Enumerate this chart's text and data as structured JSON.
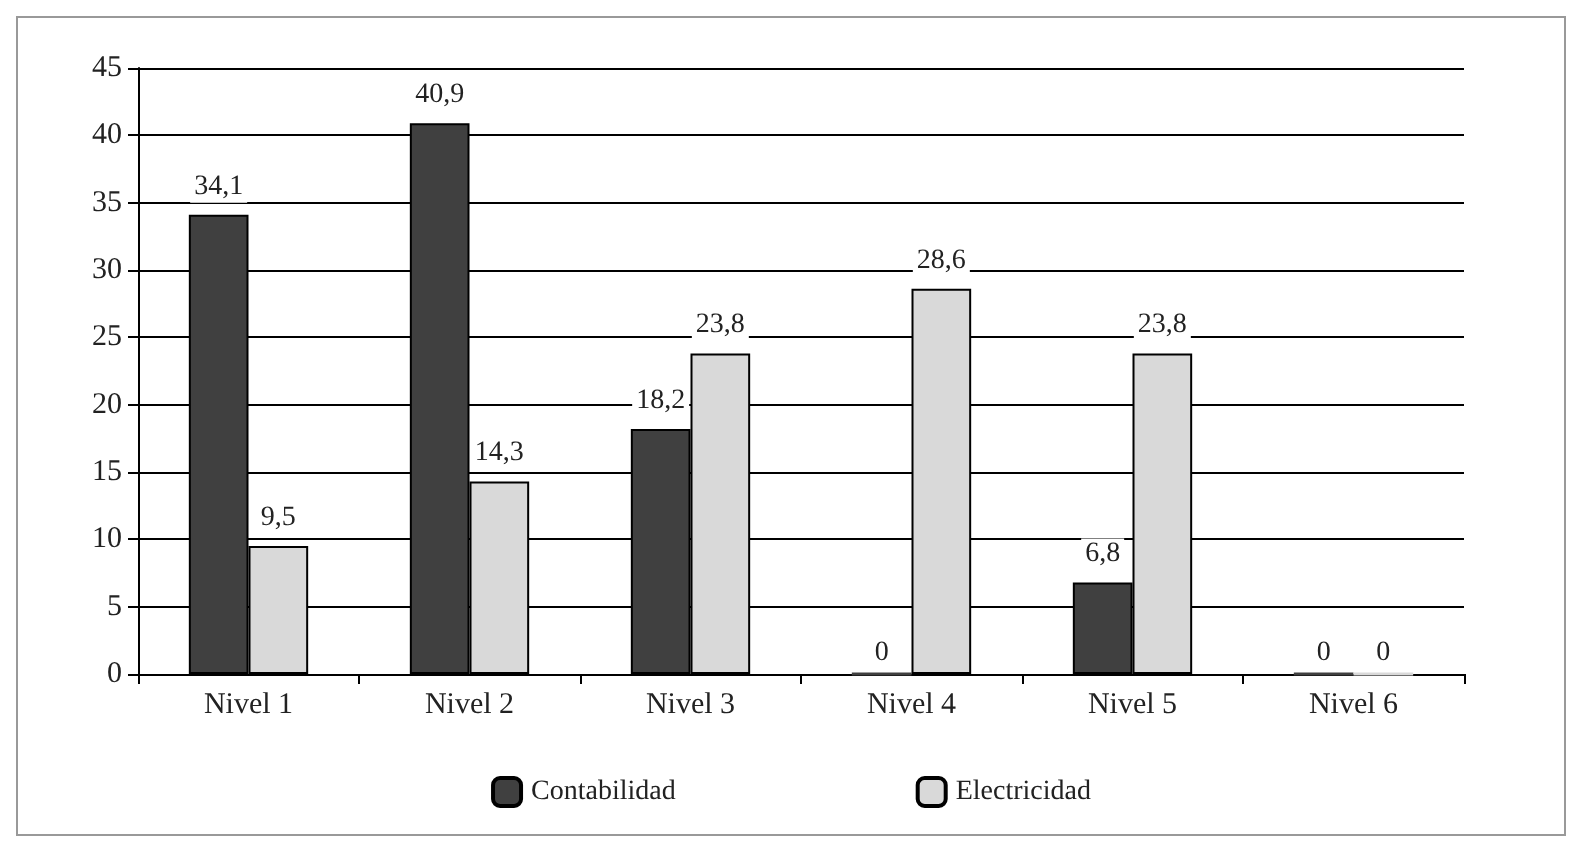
{
  "chart_data": {
    "type": "bar",
    "categories": [
      "Nivel 1",
      "Nivel 2",
      "Nivel 3",
      "Nivel 4",
      "Nivel 5",
      "Nivel 6"
    ],
    "series": [
      {
        "name": "Contabilidad",
        "color": "#404040",
        "values": [
          34.1,
          40.9,
          18.2,
          0,
          6.8,
          0
        ],
        "value_labels": [
          "34,1",
          "40,9",
          "18,2",
          "0",
          "6,8",
          "0"
        ]
      },
      {
        "name": "Electricidad",
        "color": "#d9d9d9",
        "values": [
          9.5,
          14.3,
          23.8,
          28.6,
          23.8,
          0
        ],
        "value_labels": [
          "9,5",
          "14,3",
          "23,8",
          "28,6",
          "23,8",
          "0"
        ]
      }
    ],
    "ylim": [
      0,
      45
    ],
    "yticks": [
      0,
      5,
      10,
      15,
      20,
      25,
      30,
      35,
      40,
      45
    ],
    "grid": "y",
    "legend": "bottom"
  }
}
